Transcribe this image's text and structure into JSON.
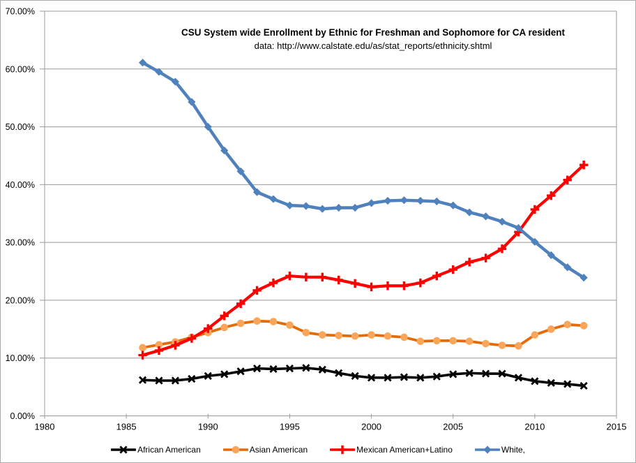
{
  "chart_data": {
    "type": "line",
    "title": "CSU System wide Enrollment by Ethnic for Freshman and Sophomore for CA resident",
    "subtitle": "data: http://www.calstate.edu/as/stat_reports/ethnicity.shtml",
    "xlabel": "",
    "ylabel": "",
    "xlim": [
      1980,
      2015
    ],
    "ylim": [
      0,
      70
    ],
    "grid": "horizontal",
    "legend_position": "bottom",
    "x_ticks": [
      "1980",
      "1985",
      "1990",
      "1995",
      "2000",
      "2005",
      "2010",
      "2015"
    ],
    "y_ticks": [
      {
        "label": "0.00%",
        "value": 0
      },
      {
        "label": "10.00%",
        "value": 10
      },
      {
        "label": "20.00%",
        "value": 20
      },
      {
        "label": "30.00%",
        "value": 30
      },
      {
        "label": "40.00%",
        "value": 40
      },
      {
        "label": "50.00%",
        "value": 50
      },
      {
        "label": "60.00%",
        "value": 60
      },
      {
        "label": "70.00%",
        "value": 70
      }
    ],
    "x": [
      1986,
      1987,
      1988,
      1989,
      1990,
      1991,
      1992,
      1993,
      1994,
      1995,
      1996,
      1997,
      1998,
      1999,
      2000,
      2001,
      2002,
      2003,
      2004,
      2005,
      2006,
      2007,
      2008,
      2009,
      2010,
      2011,
      2012,
      2013
    ],
    "series": [
      {
        "name": "African American",
        "color": "#000000",
        "marker": "x",
        "marker_color": "#000000",
        "line_width": 3.6,
        "values": [
          6.2,
          6.1,
          6.1,
          6.4,
          6.9,
          7.2,
          7.7,
          8.2,
          8.1,
          8.2,
          8.3,
          8.0,
          7.4,
          6.9,
          6.6,
          6.6,
          6.7,
          6.6,
          6.8,
          7.2,
          7.4,
          7.3,
          7.3,
          6.6,
          6.0,
          5.7,
          5.5,
          5.2
        ]
      },
      {
        "name": "Asian American",
        "color": "#E36C09",
        "marker": "circle",
        "marker_color": "#F9A65B",
        "line_width": 3.8,
        "values": [
          11.8,
          12.3,
          12.8,
          13.6,
          14.4,
          15.3,
          16.0,
          16.4,
          16.3,
          15.7,
          14.4,
          14.0,
          13.9,
          13.8,
          14.0,
          13.8,
          13.6,
          12.9,
          13.0,
          13.0,
          12.9,
          12.5,
          12.2,
          12.1,
          14.0,
          15.0,
          15.8,
          15.6
        ]
      },
      {
        "name": "Mexican American+Latino",
        "color": "#FF0000",
        "marker": "plus",
        "marker_color": "#FF0000",
        "line_width": 4.2,
        "values": [
          10.5,
          11.3,
          12.2,
          13.4,
          15.1,
          17.3,
          19.4,
          21.7,
          23.0,
          24.2,
          24.0,
          24.0,
          23.5,
          22.9,
          22.3,
          22.5,
          22.5,
          23.0,
          24.2,
          25.3,
          26.6,
          27.3,
          28.9,
          31.8,
          35.7,
          38.1,
          40.8,
          43.4
        ]
      },
      {
        "name": "White,",
        "color": "#4F81BD",
        "marker": "diamond",
        "marker_color": "#4F81BD",
        "line_width": 4.5,
        "values": [
          61.1,
          59.5,
          57.8,
          54.3,
          50.0,
          45.9,
          42.3,
          38.7,
          37.5,
          36.4,
          36.3,
          35.8,
          36.0,
          36.0,
          36.8,
          37.2,
          37.3,
          37.2,
          37.1,
          36.4,
          35.2,
          34.5,
          33.6,
          32.5,
          30.1,
          27.8,
          25.7,
          23.9
        ]
      }
    ],
    "style": {
      "grid_color": "#999999",
      "axis_color": "#999999",
      "text_color": "#000000",
      "background": "#FFFFFF"
    }
  }
}
